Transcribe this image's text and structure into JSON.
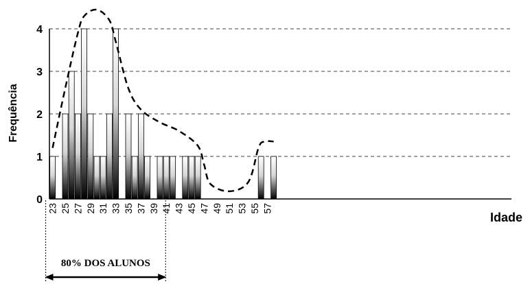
{
  "chart_data": {
    "type": "bar",
    "title": "",
    "xlabel": "Idade",
    "ylabel": "Frequência",
    "x_ticks": [
      "23",
      "25",
      "27",
      "29",
      "31",
      "33",
      "35",
      "37",
      "39",
      "41",
      "43",
      "45",
      "47",
      "49",
      "51",
      "53",
      "55",
      "57"
    ],
    "y_ticks": [
      "0",
      "1",
      "2",
      "3",
      "4"
    ],
    "ylim": [
      0,
      4
    ],
    "grid": "horizontal dashed",
    "series": [
      {
        "bar_values": [
          {
            "x": 23,
            "y": 1
          },
          {
            "x": 25,
            "y": 2
          },
          {
            "x": 26,
            "y": 3
          },
          {
            "x": 27,
            "y": 2
          },
          {
            "x": 28,
            "y": 4
          },
          {
            "x": 29,
            "y": 2
          },
          {
            "x": 30,
            "y": 1
          },
          {
            "x": 31,
            "y": 1
          },
          {
            "x": 32,
            "y": 2
          },
          {
            "x": 33,
            "y": 4
          },
          {
            "x": 35,
            "y": 2
          },
          {
            "x": 36,
            "y": 1
          },
          {
            "x": 37,
            "y": 2
          },
          {
            "x": 38,
            "y": 1
          },
          {
            "x": 40,
            "y": 1
          },
          {
            "x": 41,
            "y": 1
          },
          {
            "x": 42,
            "y": 1
          },
          {
            "x": 44,
            "y": 1
          },
          {
            "x": 45,
            "y": 1
          },
          {
            "x": 46,
            "y": 1
          },
          {
            "x": 56,
            "y": 1
          },
          {
            "x": 58,
            "y": 1
          }
        ]
      }
    ],
    "trend_curve": {
      "style": "dashed",
      "points": [
        {
          "x": 23,
          "y": 1.2
        },
        {
          "x": 25,
          "y": 2.6
        },
        {
          "x": 27,
          "y": 3.9
        },
        {
          "x": 28,
          "y": 4.3
        },
        {
          "x": 30,
          "y": 4.45
        },
        {
          "x": 32,
          "y": 4.2
        },
        {
          "x": 33,
          "y": 3.7
        },
        {
          "x": 35,
          "y": 2.6
        },
        {
          "x": 37,
          "y": 2.1
        },
        {
          "x": 40,
          "y": 1.8
        },
        {
          "x": 43,
          "y": 1.6
        },
        {
          "x": 46,
          "y": 1.25
        },
        {
          "x": 47,
          "y": 0.8
        },
        {
          "x": 48,
          "y": 0.35
        },
        {
          "x": 51,
          "y": 0.18
        },
        {
          "x": 54,
          "y": 0.4
        },
        {
          "x": 55.6,
          "y": 1.2
        },
        {
          "x": 56.5,
          "y": 1.35
        },
        {
          "x": 58,
          "y": 1.35
        }
      ]
    },
    "annotation": {
      "text": "80% DOS ALUNOS",
      "from_x": 23,
      "to_x": 41
    }
  }
}
